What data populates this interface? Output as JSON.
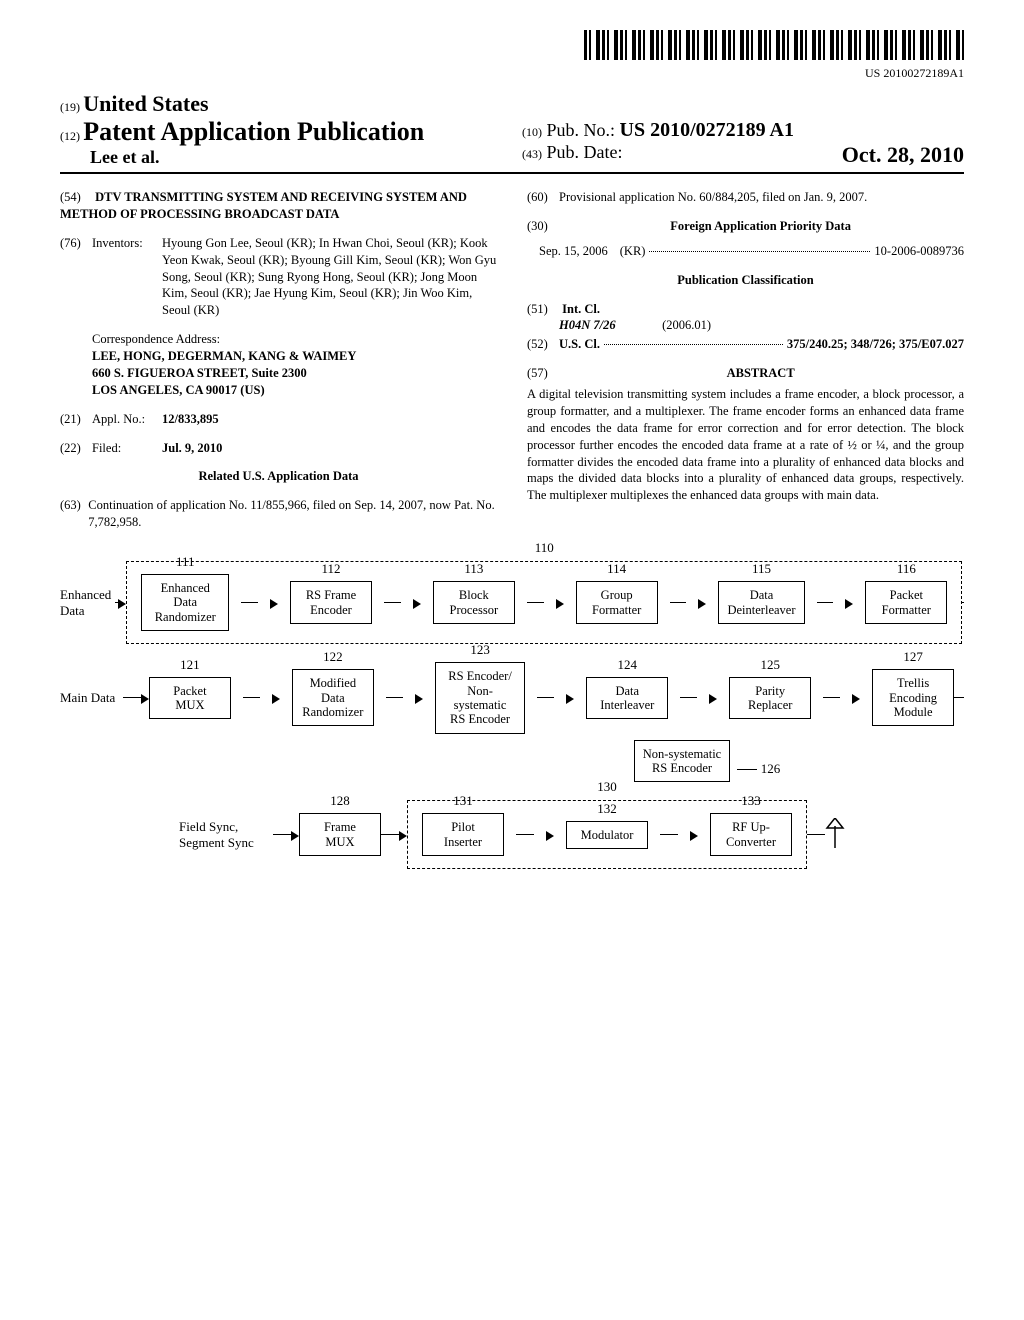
{
  "barcode_text": "US 20100272189A1",
  "header": {
    "code19": "(19)",
    "us": "United States",
    "code12": "(12)",
    "pap": "Patent Application Publication",
    "authors": "Lee et al.",
    "code10": "(10)",
    "pubnum_label": "Pub. No.:",
    "pubnum": "US 2010/0272189 A1",
    "code43": "(43)",
    "pubdate_label": "Pub. Date:",
    "pubdate": "Oct. 28, 2010"
  },
  "left": {
    "s54": "(54)",
    "title": "DTV TRANSMITTING SYSTEM AND RECEIVING SYSTEM AND METHOD OF PROCESSING BROADCAST DATA",
    "s76": "(76)",
    "inventors_label": "Inventors:",
    "inventors": "Hyoung Gon Lee, Seoul (KR); In Hwan Choi, Seoul (KR); Kook Yeon Kwak, Seoul (KR); Byoung Gill Kim, Seoul (KR); Won Gyu Song, Seoul (KR); Sung Ryong Hong, Seoul (KR); Jong Moon Kim, Seoul (KR); Jae Hyung Kim, Seoul (KR); Jin Woo Kim, Seoul (KR)",
    "corr_label": "Correspondence Address:",
    "corr1": "LEE, HONG, DEGERMAN, KANG & WAIMEY",
    "corr2": "660 S. FIGUEROA STREET, Suite 2300",
    "corr3": "LOS ANGELES, CA 90017 (US)",
    "s21": "(21)",
    "applno_label": "Appl. No.:",
    "applno": "12/833,895",
    "s22": "(22)",
    "filed_label": "Filed:",
    "filed": "Jul. 9, 2010",
    "related_header": "Related U.S. Application Data",
    "s63": "(63)",
    "related": "Continuation of application No. 11/855,966, filed on Sep. 14, 2007, now Pat. No. 7,782,958."
  },
  "right": {
    "s60": "(60)",
    "provisional": "Provisional application No. 60/884,205, filed on Jan. 9, 2007.",
    "s30": "(30)",
    "foreign_header": "Foreign Application Priority Data",
    "foreign_date": "Sep. 15, 2006",
    "foreign_cc": "(KR)",
    "foreign_num": "10-2006-0089736",
    "pubclass_header": "Publication Classification",
    "s51": "(51)",
    "intcl_label": "Int. Cl.",
    "intcl_code": "H04N 7/26",
    "intcl_date": "(2006.01)",
    "s52": "(52)",
    "uscl_label": "U.S. Cl.",
    "uscl_val": "375/240.25; 348/726; 375/E07.027",
    "s57": "(57)",
    "abstract_label": "ABSTRACT",
    "abstract": "A digital television transmitting system includes a frame encoder, a block processor, a group formatter, and a multiplexer. The frame encoder forms an enhanced data frame and encodes the data frame for error correction and for error detection. The block processor further encodes the encoded data frame at a rate of ½ or ¼, and the group formatter divides the encoded data frame into a plurality of enhanced data blocks and maps the divided data blocks into a plurality of enhanced data groups, respectively. The multiplexer multiplexes the enhanced data groups with main data."
  },
  "diagram": {
    "row1_input": "Enhanced Data",
    "row1_group_num": "110",
    "row1": [
      {
        "num": "111",
        "lines": [
          "Enhanced Data",
          "Randomizer"
        ]
      },
      {
        "num": "112",
        "lines": [
          "RS Frame",
          "Encoder"
        ]
      },
      {
        "num": "113",
        "lines": [
          "Block",
          "Processor"
        ]
      },
      {
        "num": "114",
        "lines": [
          "Group",
          "Formatter"
        ]
      },
      {
        "num": "115",
        "lines": [
          "Data",
          "Deinterleaver"
        ]
      },
      {
        "num": "116",
        "lines": [
          "Packet",
          "Formatter"
        ]
      }
    ],
    "row2_input": "Main Data",
    "row2": [
      {
        "num": "121",
        "lines": [
          "Packet",
          "MUX"
        ]
      },
      {
        "num": "122",
        "lines": [
          "Modified",
          "Data",
          "Randomizer"
        ]
      },
      {
        "num": "123",
        "lines": [
          "RS Encoder/",
          "Non-systematic",
          "RS Encoder"
        ]
      },
      {
        "num": "124",
        "lines": [
          "Data",
          "Interleaver"
        ]
      },
      {
        "num": "125",
        "lines": [
          "Parity",
          "Replacer"
        ]
      },
      {
        "num": "127",
        "lines": [
          "Trellis",
          "Encoding",
          "Module"
        ]
      }
    ],
    "row2_under": {
      "num": "126",
      "lines": [
        "Non-systematic",
        "RS Encoder"
      ]
    },
    "row3_input": "Field Sync, Segment Sync",
    "row3_group_num": "130",
    "row3_left": {
      "num": "128",
      "lines": [
        "Frame",
        "MUX"
      ]
    },
    "row3": [
      {
        "num": "131",
        "lines": [
          "Pilot",
          "Inserter"
        ]
      },
      {
        "num": "132",
        "lines": [
          "Modulator"
        ]
      },
      {
        "num": "133",
        "lines": [
          "RF Up-",
          "Converter"
        ]
      }
    ]
  }
}
